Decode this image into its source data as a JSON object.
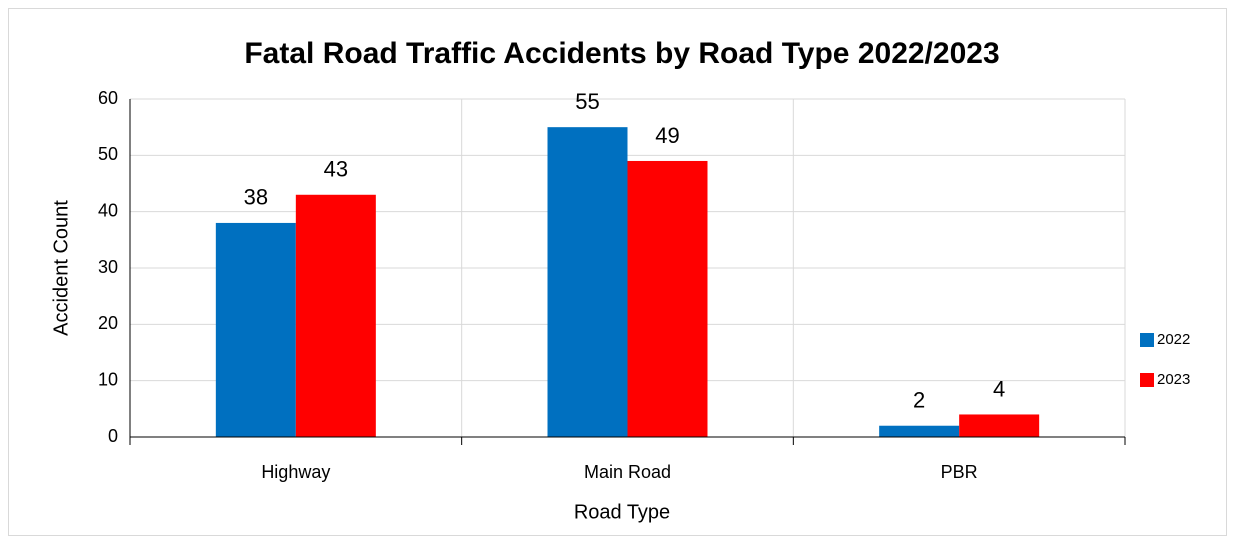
{
  "chart_data": {
    "type": "bar",
    "title": "Fatal Road Traffic Accidents by Road Type 2022/2023",
    "x_label": "Road Type",
    "y_label": "Accident Count",
    "categories": [
      "Highway",
      "Main Road",
      "PBR"
    ],
    "series": [
      {
        "name": "2022",
        "color": "#0070c0",
        "values": [
          38,
          55,
          2
        ]
      },
      {
        "name": "2023",
        "color": "#ff0000",
        "values": [
          43,
          49,
          4
        ]
      }
    ],
    "ylim": [
      0,
      60
    ],
    "yticks": [
      0,
      10,
      20,
      30,
      40,
      50,
      60
    ],
    "grid": true,
    "legend": "right"
  }
}
